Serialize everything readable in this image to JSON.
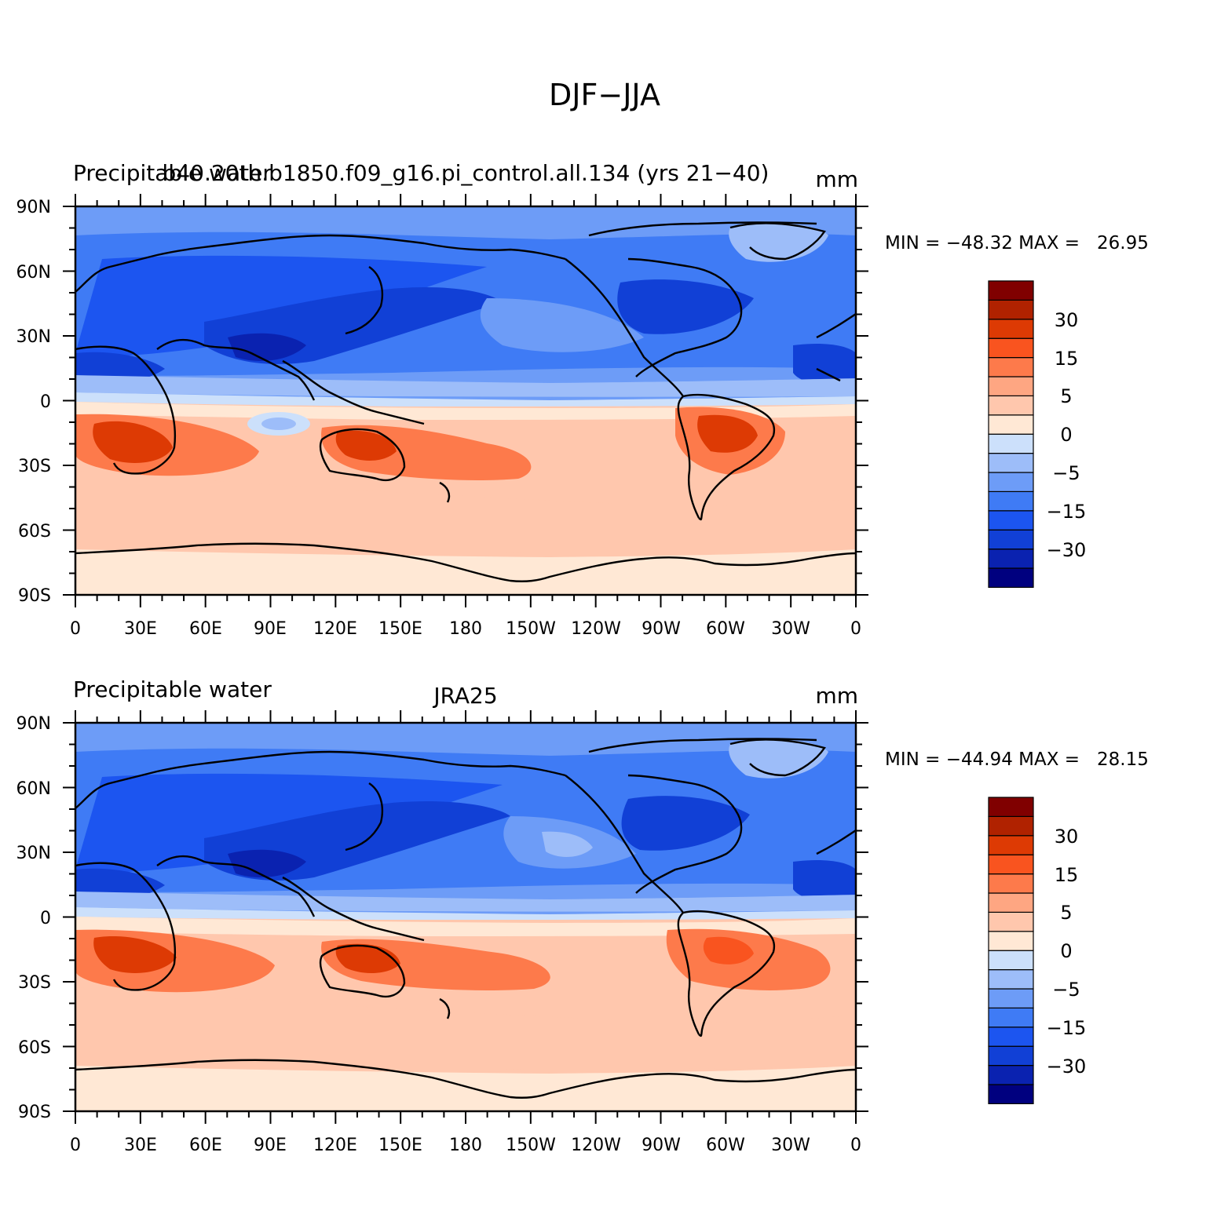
{
  "title": "DJF−JJA",
  "colors": {
    "levels": [
      "#00007f",
      "#0a22b0",
      "#1140d6",
      "#1c55f0",
      "#3f7bf5",
      "#6d9cf7",
      "#9dbdf9",
      "#cce0fb",
      "#ffe8d5",
      "#ffc7ad",
      "#fea682",
      "#fd7a4b",
      "#f9541f",
      "#dd3a04",
      "#b02200",
      "#800000"
    ],
    "coast": "#000000"
  },
  "panels": [
    {
      "left_title": "Precipitable water",
      "center_title": "b40.20th.b1850.f09_g16.pi_control.all.134 (yrs 21−40)",
      "units": "mm",
      "min_max": "MIN = −48.32 MAX =   26.95",
      "colorbar_labels": [
        "30",
        "15",
        "5",
        "0",
        "−5",
        "−15",
        "−30"
      ]
    },
    {
      "left_title": "Precipitable water",
      "center_title": "JRA25",
      "units": "mm",
      "min_max": "MIN = −44.94 MAX =   28.15",
      "colorbar_labels": [
        "30",
        "15",
        "5",
        "0",
        "−5",
        "−15",
        "−30"
      ]
    }
  ],
  "axes": {
    "lat_labels": [
      "90N",
      "60N",
      "30N",
      "0",
      "30S",
      "60S",
      "90S"
    ],
    "lon_labels": [
      "0",
      "30E",
      "60E",
      "90E",
      "120E",
      "150E",
      "180",
      "150W",
      "120W",
      "90W",
      "60W",
      "30W",
      "0"
    ]
  }
}
